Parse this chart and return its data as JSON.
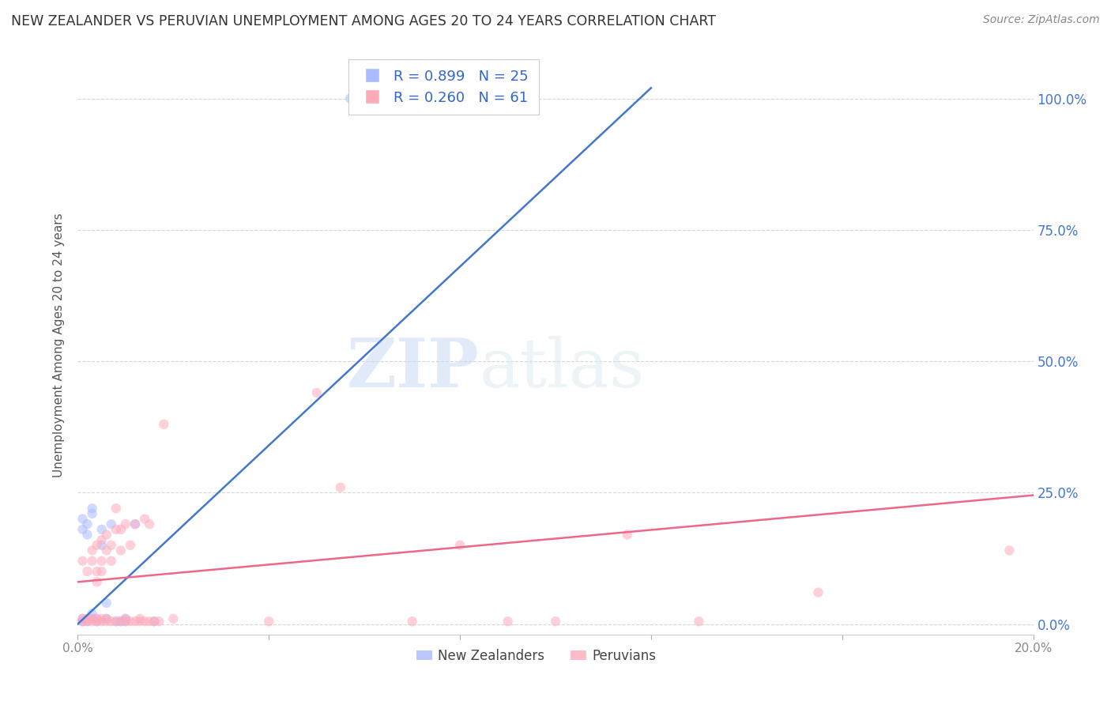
{
  "title": "NEW ZEALANDER VS PERUVIAN UNEMPLOYMENT AMONG AGES 20 TO 24 YEARS CORRELATION CHART",
  "source": "Source: ZipAtlas.com",
  "ylabel": "Unemployment Among Ages 20 to 24 years",
  "xlim": [
    0.0,
    0.2
  ],
  "ylim": [
    -0.02,
    1.08
  ],
  "yticks": [
    0.0,
    0.25,
    0.5,
    0.75,
    1.0
  ],
  "xticks": [
    0.0,
    0.04,
    0.08,
    0.12,
    0.16,
    0.2
  ],
  "nz_color": "#aabbff",
  "peru_color": "#ffaabb",
  "nz_line_color": "#4477cc",
  "peru_line_color": "#ee6688",
  "legend_nz": "New Zealanders",
  "legend_peru": "Peruvians",
  "nz_R": "0.899",
  "nz_N": "25",
  "peru_R": "0.260",
  "peru_N": "61",
  "watermark_zip": "ZIP",
  "watermark_atlas": "atlas",
  "nz_x": [
    0.001,
    0.001,
    0.001,
    0.001,
    0.002,
    0.002,
    0.002,
    0.003,
    0.003,
    0.003,
    0.003,
    0.004,
    0.004,
    0.005,
    0.005,
    0.006,
    0.006,
    0.007,
    0.008,
    0.009,
    0.01,
    0.01,
    0.012,
    0.016,
    0.057
  ],
  "nz_y": [
    0.005,
    0.01,
    0.18,
    0.2,
    0.005,
    0.17,
    0.19,
    0.01,
    0.02,
    0.21,
    0.22,
    0.005,
    0.01,
    0.15,
    0.18,
    0.01,
    0.04,
    0.19,
    0.005,
    0.005,
    0.005,
    0.01,
    0.19,
    0.005,
    1.0
  ],
  "peru_x": [
    0.001,
    0.001,
    0.001,
    0.002,
    0.002,
    0.002,
    0.003,
    0.003,
    0.003,
    0.003,
    0.004,
    0.004,
    0.004,
    0.004,
    0.004,
    0.005,
    0.005,
    0.005,
    0.005,
    0.005,
    0.006,
    0.006,
    0.006,
    0.006,
    0.007,
    0.007,
    0.007,
    0.008,
    0.008,
    0.008,
    0.009,
    0.009,
    0.009,
    0.01,
    0.01,
    0.01,
    0.011,
    0.011,
    0.012,
    0.012,
    0.013,
    0.013,
    0.014,
    0.014,
    0.015,
    0.015,
    0.016,
    0.017,
    0.018,
    0.02,
    0.04,
    0.05,
    0.055,
    0.07,
    0.08,
    0.09,
    0.1,
    0.115,
    0.13,
    0.155,
    0.195
  ],
  "peru_y": [
    0.005,
    0.01,
    0.12,
    0.005,
    0.01,
    0.1,
    0.005,
    0.01,
    0.12,
    0.14,
    0.005,
    0.01,
    0.08,
    0.1,
    0.15,
    0.005,
    0.01,
    0.1,
    0.12,
    0.16,
    0.005,
    0.01,
    0.14,
    0.17,
    0.005,
    0.12,
    0.15,
    0.005,
    0.18,
    0.22,
    0.005,
    0.14,
    0.18,
    0.005,
    0.01,
    0.19,
    0.005,
    0.15,
    0.005,
    0.19,
    0.005,
    0.01,
    0.005,
    0.2,
    0.005,
    0.19,
    0.005,
    0.005,
    0.38,
    0.01,
    0.005,
    0.44,
    0.26,
    0.005,
    0.15,
    0.005,
    0.005,
    0.17,
    0.005,
    0.06,
    0.14
  ],
  "nz_line_x": [
    0.0,
    0.12
  ],
  "nz_line_y": [
    0.0,
    1.02
  ],
  "peru_line_x": [
    0.0,
    0.2
  ],
  "peru_line_y": [
    0.08,
    0.245
  ],
  "grid_color": "#cccccc",
  "bg_color": "#ffffff",
  "marker_size": 80,
  "marker_alpha": 0.55,
  "title_color": "#333333",
  "tick_color": "#aaaaaa",
  "right_axis_color": "#4477cc"
}
